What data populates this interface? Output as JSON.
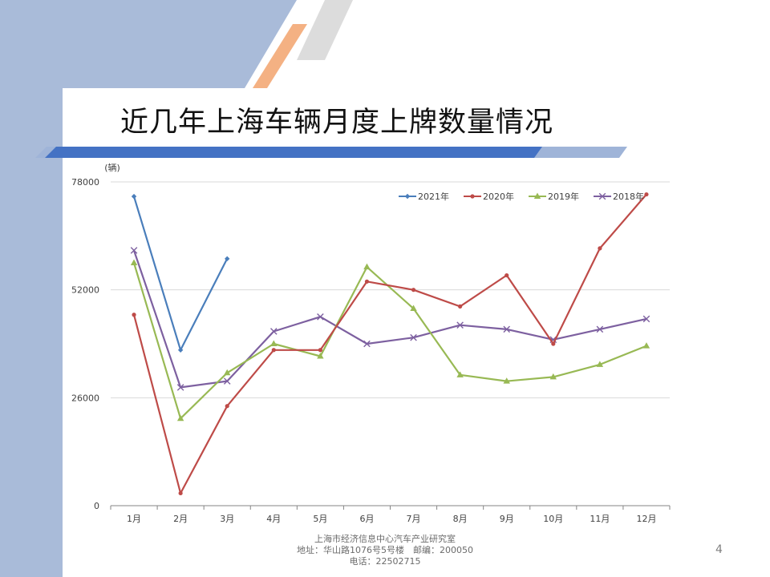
{
  "slide": {
    "title": "近几年上海车辆月度上牌数量情况",
    "page_number": "4",
    "footer": [
      "上海市经济信息中心汽车产业研究室",
      "地址：华山路1076号5号楼　邮编：200050",
      "电话：22502715"
    ],
    "colors": {
      "band": "#a9bbd9",
      "stripe": "#4472c4",
      "accent": "#f4b183"
    }
  },
  "chart_data": {
    "type": "line",
    "ylabel": "(辆)",
    "ylim": [
      0,
      78000
    ],
    "yticks": [
      0,
      26000,
      52000,
      78000
    ],
    "categories": [
      "1月",
      "2月",
      "3月",
      "4月",
      "5月",
      "6月",
      "7月",
      "8月",
      "9月",
      "10月",
      "11月",
      "12月"
    ],
    "grid": true,
    "legend": "top-right",
    "series": [
      {
        "name": "2021年",
        "color": "#4a7ebb",
        "marker": "diamond",
        "values": [
          74500,
          37500,
          59500,
          null,
          null,
          null,
          null,
          null,
          null,
          null,
          null,
          null
        ]
      },
      {
        "name": "2020年",
        "color": "#be4b48",
        "marker": "circle",
        "values": [
          46000,
          3000,
          24000,
          37500,
          37500,
          54000,
          52000,
          48000,
          55500,
          39000,
          62000,
          75000
        ]
      },
      {
        "name": "2019年",
        "color": "#98b954",
        "marker": "triangle",
        "values": [
          58500,
          21000,
          32000,
          39000,
          36000,
          57500,
          47500,
          31500,
          30000,
          31000,
          34000,
          38500
        ]
      },
      {
        "name": "2018年",
        "color": "#7d60a0",
        "marker": "x",
        "values": [
          61500,
          28500,
          30000,
          42000,
          45500,
          39000,
          40500,
          43500,
          42500,
          40000,
          42500,
          45000
        ]
      }
    ]
  }
}
